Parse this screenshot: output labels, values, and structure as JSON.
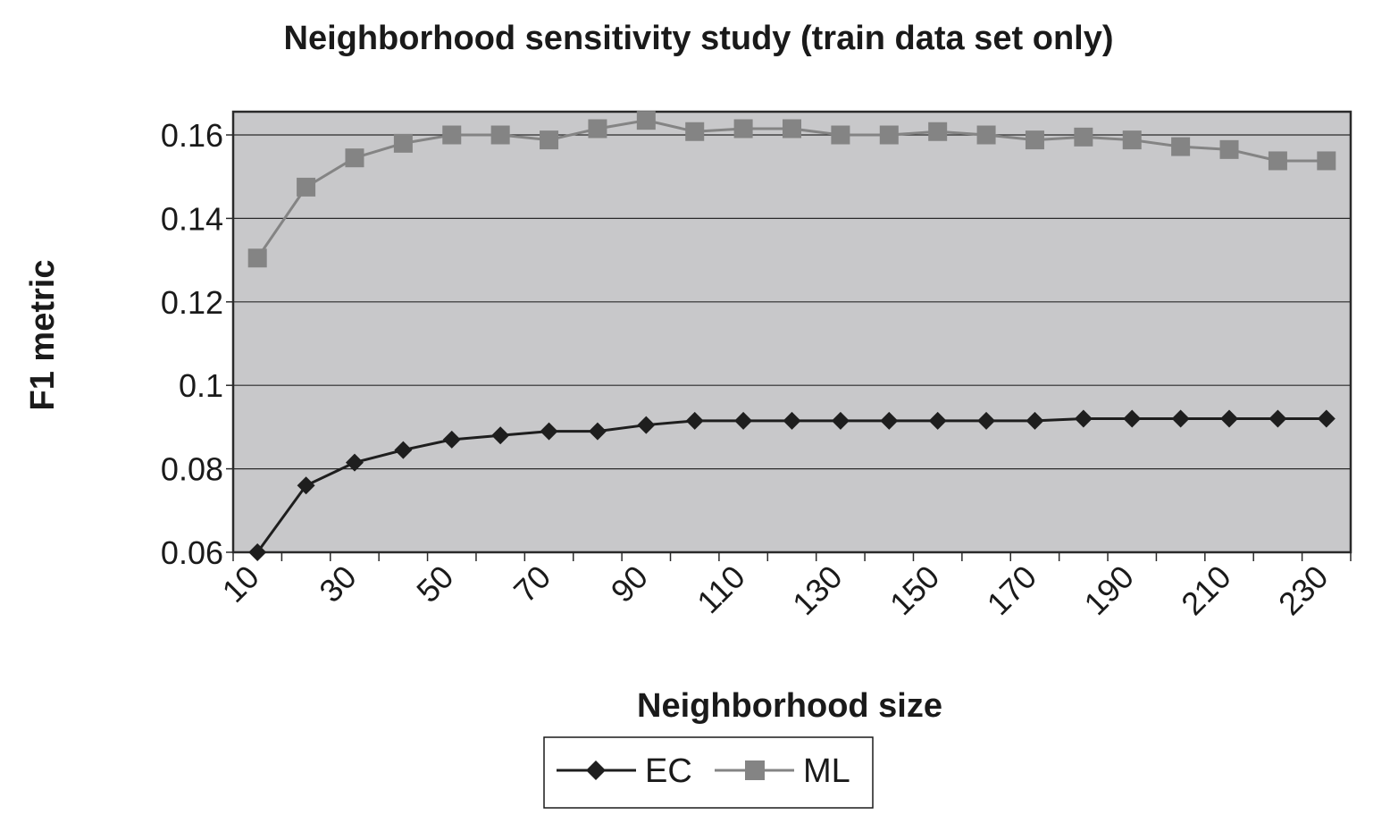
{
  "chart_data": {
    "type": "line",
    "title": "Neighborhood sensitivity study (train data set only)",
    "xlabel": "Neighborhood size",
    "ylabel": "F1 metric",
    "x": [
      15,
      25,
      35,
      45,
      55,
      65,
      75,
      85,
      95,
      105,
      115,
      125,
      135,
      145,
      155,
      165,
      175,
      185,
      195,
      205,
      215,
      225,
      235
    ],
    "x_tick_labels": [
      "10",
      "30",
      "50",
      "70",
      "90",
      "110",
      "130",
      "150",
      "170",
      "190",
      "210",
      "230"
    ],
    "y_tick_labels": [
      "0.16",
      "0.14",
      "0.12",
      "0.1",
      "0.08",
      "0.06"
    ],
    "xlim": [
      10,
      240
    ],
    "ylim": [
      0.06,
      0.165
    ],
    "grid": true,
    "legend_position": "bottom-center",
    "series": [
      {
        "name": "EC",
        "marker": "diamond",
        "color": "#1e1e1e",
        "values": [
          0.06,
          0.076,
          0.0815,
          0.0845,
          0.087,
          0.088,
          0.089,
          0.089,
          0.0905,
          0.0915,
          0.0915,
          0.0915,
          0.0915,
          0.0915,
          0.0915,
          0.0915,
          0.0915,
          0.092,
          0.092,
          0.092,
          0.092,
          0.092,
          0.092
        ]
      },
      {
        "name": "ML",
        "marker": "square",
        "color": "#848484",
        "values": [
          0.1305,
          0.1475,
          0.1545,
          0.158,
          0.16,
          0.16,
          0.1588,
          0.1615,
          0.1635,
          0.1608,
          0.1615,
          0.1615,
          0.16,
          0.16,
          0.1608,
          0.16,
          0.1588,
          0.1595,
          0.1588,
          0.1572,
          0.1565,
          0.1538,
          0.1538
        ]
      }
    ]
  },
  "colors": {
    "plot_background": "#c8c8ca",
    "gridline": "#2a2a2a",
    "frame": "#2a2a2a"
  }
}
